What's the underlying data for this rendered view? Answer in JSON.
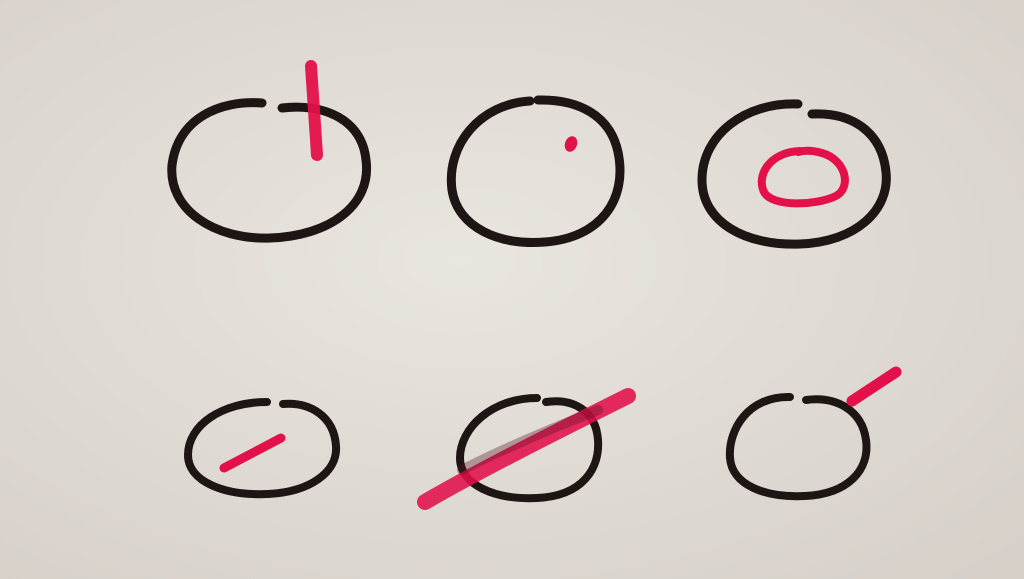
{
  "colors": {
    "paper": "#ddd8d2",
    "paper_light": "#e8e4de",
    "ink_black": "#1e1614",
    "ink_red": "#e3104a"
  },
  "figures": [
    {
      "id": "circle-with-vertical-stroke",
      "red_mark": "vertical-line"
    },
    {
      "id": "circle-with-dot",
      "red_mark": "dot"
    },
    {
      "id": "circle-with-inner-ring",
      "red_mark": "inner-ring"
    },
    {
      "id": "circle-with-short-diagonal",
      "red_mark": "short-diagonal-line"
    },
    {
      "id": "circle-with-long-diagonal",
      "red_mark": "long-diagonal-line"
    },
    {
      "id": "circle-with-outside-diagonal",
      "red_mark": "diagonal-line-outside"
    }
  ]
}
